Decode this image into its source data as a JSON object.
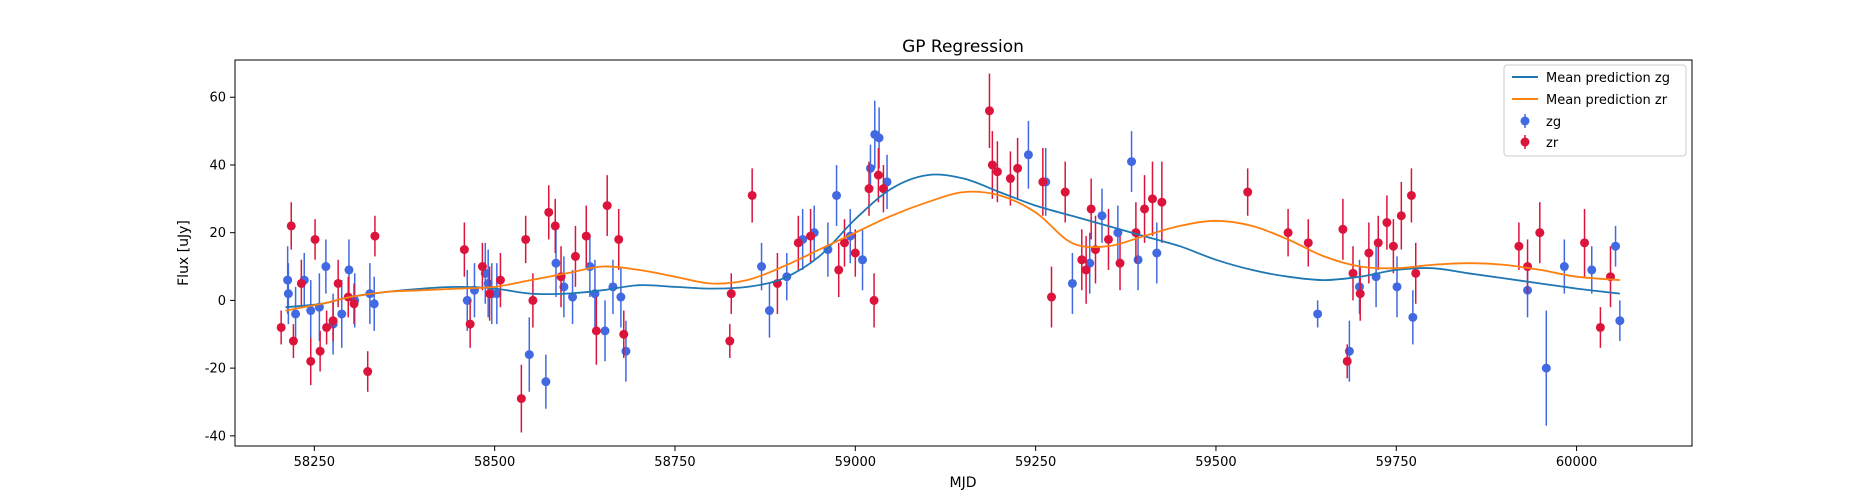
{
  "chart_data": {
    "type": "scatter",
    "title": "GP Regression",
    "xlabel": "MJD",
    "ylabel": "Flux [uJy]",
    "xlim": [
      58140,
      60160
    ],
    "ylim": [
      -43,
      71
    ],
    "xticks": [
      58250,
      58500,
      58750,
      59000,
      59250,
      59500,
      59750,
      60000
    ],
    "yticks": [
      -40,
      -20,
      0,
      20,
      40,
      60
    ],
    "legend_placement": "top-right",
    "grid": false,
    "lines": [
      {
        "name": "Mean prediction zg",
        "color": "#1f77b4",
        "x": [
          58210,
          58260,
          58300,
          58350,
          58400,
          58450,
          58500,
          58550,
          58600,
          58650,
          58700,
          58750,
          58800,
          58850,
          58900,
          58950,
          59000,
          59050,
          59100,
          59150,
          59200,
          59250,
          59300,
          59350,
          59400,
          59450,
          59500,
          59550,
          59600,
          59650,
          59700,
          59750,
          59800,
          59850,
          59900,
          59950,
          60000,
          60060
        ],
        "y": [
          -2,
          -1,
          1,
          2.5,
          3.5,
          4,
          3.5,
          2,
          2,
          3,
          4.5,
          4,
          3.5,
          4,
          6.5,
          13,
          24,
          33,
          37,
          36,
          32,
          28,
          25,
          22,
          19,
          16,
          12,
          9,
          7,
          6,
          7,
          9,
          9.5,
          8,
          6.5,
          5,
          3.5,
          2
        ]
      },
      {
        "name": "Mean prediction zr",
        "color": "#ff7f0e",
        "x": [
          58210,
          58260,
          58300,
          58350,
          58400,
          58450,
          58500,
          58550,
          58600,
          58650,
          58700,
          58750,
          58800,
          58850,
          58900,
          58950,
          59000,
          59050,
          59100,
          59150,
          59200,
          59250,
          59300,
          59350,
          59400,
          59450,
          59500,
          59550,
          59600,
          59650,
          59700,
          59750,
          59800,
          59850,
          59900,
          59950,
          60000,
          60060
        ],
        "y": [
          -3,
          -1,
          1,
          2.5,
          3,
          3.5,
          4,
          6,
          8,
          10,
          9,
          7,
          5,
          6,
          10,
          15,
          20,
          25,
          29,
          32,
          31,
          26,
          17,
          16,
          19,
          22,
          23.5,
          22,
          18,
          13,
          10,
          9.5,
          10.5,
          11,
          10.5,
          9,
          7,
          6
        ]
      }
    ],
    "series": [
      {
        "name": "zg",
        "color": "#4169e1",
        "x": [
          58213,
          58214,
          58224,
          58236,
          58245,
          58257,
          58266,
          58276,
          58288,
          58298,
          58306,
          58327,
          58333,
          58462,
          58472,
          58487,
          58491,
          58496,
          58503,
          58548,
          58571,
          58585,
          58596,
          58608,
          58632,
          58639,
          58653,
          58664,
          58675,
          58682,
          58870,
          58881,
          58905,
          58927,
          58943,
          58962,
          58974,
          58993,
          59010,
          59021,
          59027,
          59033,
          59044,
          59240,
          59264,
          59301,
          59325,
          59342,
          59364,
          59383,
          59392,
          59418,
          59641,
          59685,
          59699,
          59722,
          59751,
          59773,
          59932,
          59958,
          59983,
          60021,
          60054,
          60060
        ],
        "y": [
          6,
          2,
          -4,
          6,
          -3,
          -2,
          10,
          -7,
          -4,
          9,
          0,
          2,
          -1,
          0,
          3,
          8,
          5,
          2,
          2,
          -16,
          -24,
          11,
          4,
          1,
          10,
          2,
          -9,
          4,
          1,
          -15,
          10,
          -3,
          7,
          18,
          20,
          15,
          31,
          19,
          12,
          39,
          49,
          48,
          35,
          43,
          35,
          5,
          11,
          25,
          20,
          41,
          12,
          14,
          -4,
          -15,
          4,
          7,
          4,
          -5,
          3,
          -20,
          10,
          9,
          16,
          -6
        ],
        "err": [
          10,
          9,
          8,
          8,
          9,
          10,
          8,
          9,
          10,
          9,
          8,
          9,
          8,
          9,
          8,
          9,
          10,
          9,
          9,
          11,
          8,
          10,
          9,
          8,
          9,
          10,
          9,
          8,
          9,
          9,
          7,
          8,
          7,
          9,
          8,
          8,
          9,
          8,
          9,
          7,
          10,
          9,
          8,
          10,
          10,
          9,
          9,
          8,
          8,
          9,
          9,
          9,
          4,
          9,
          8,
          9,
          9,
          8,
          8,
          17,
          8,
          7,
          6,
          6
        ]
      },
      {
        "name": "zr",
        "color": "#dc143c",
        "x": [
          58204,
          58218,
          58221,
          58232,
          58245,
          58251,
          58258,
          58267,
          58276,
          58283,
          58297,
          58305,
          58324,
          58334,
          58458,
          58466,
          58483,
          58493,
          58508,
          58537,
          58543,
          58553,
          58575,
          58584,
          58592,
          58612,
          58627,
          58641,
          58656,
          58672,
          58679,
          58826,
          58828,
          58857,
          58892,
          58921,
          58938,
          58977,
          58985,
          59000,
          59019,
          59026,
          59032,
          59039,
          59186,
          59190,
          59197,
          59215,
          59225,
          59260,
          59272,
          59291,
          59314,
          59320,
          59327,
          59333,
          59351,
          59367,
          59389,
          59401,
          59412,
          59425,
          59544,
          59600,
          59628,
          59676,
          59682,
          59690,
          59700,
          59712,
          59725,
          59737,
          59746,
          59757,
          59771,
          59777,
          59920,
          59932,
          59949,
          60011,
          60033,
          60047
        ],
        "y": [
          -8,
          22,
          -12,
          5,
          -18,
          18,
          -15,
          -8,
          -6,
          5,
          1,
          -1,
          -21,
          19,
          15,
          -7,
          10,
          2,
          6,
          -29,
          18,
          0,
          26,
          22,
          7,
          13,
          19,
          -9,
          28,
          18,
          -10,
          -12,
          2,
          31,
          5,
          17,
          19,
          9,
          17,
          14,
          33,
          0,
          37,
          33,
          56,
          40,
          38,
          36,
          39,
          35,
          1,
          32,
          12,
          9,
          27,
          15,
          18,
          11,
          20,
          27,
          30,
          29,
          32,
          20,
          17,
          21,
          -18,
          8,
          2,
          14,
          17,
          23,
          16,
          25,
          31,
          8,
          16,
          10,
          20,
          17,
          -8,
          7
        ],
        "err": [
          5,
          7,
          5,
          7,
          7,
          6,
          6,
          5,
          6,
          7,
          6,
          6,
          6,
          6,
          8,
          7,
          7,
          8,
          8,
          10,
          7,
          8,
          8,
          8,
          9,
          9,
          9,
          10,
          9,
          9,
          7,
          5,
          6,
          8,
          9,
          8,
          8,
          8,
          7,
          7,
          8,
          8,
          8,
          7,
          11,
          10,
          9,
          8,
          9,
          10,
          9,
          9,
          9,
          10,
          9,
          10,
          9,
          8,
          9,
          10,
          11,
          12,
          7,
          7,
          7,
          9,
          5,
          8,
          8,
          9,
          8,
          8,
          8,
          10,
          8,
          9,
          7,
          8,
          9,
          10,
          6,
          9
        ]
      }
    ]
  }
}
